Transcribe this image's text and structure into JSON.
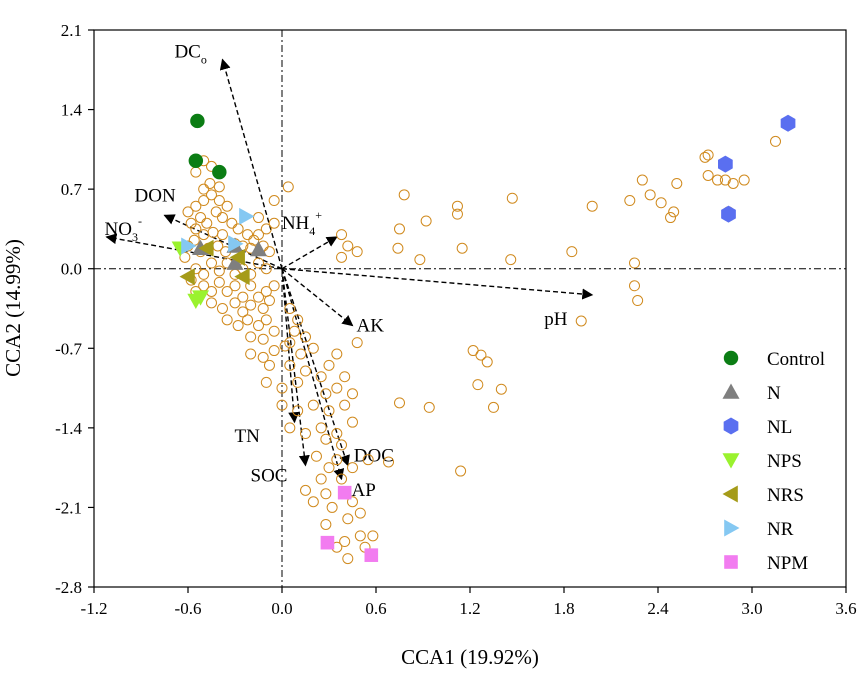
{
  "chart_data": {
    "type": "scatter",
    "title": "",
    "xlabel": "CCA1 (19.92%)",
    "ylabel": "CCA2 (14.99%)",
    "xlim": [
      -1.2,
      3.6
    ],
    "ylim": [
      -2.8,
      2.1
    ],
    "x_ticks": [
      -1.2,
      -0.6,
      0.0,
      0.6,
      1.2,
      1.8,
      2.4,
      3.0,
      3.6
    ],
    "x_tick_labels": [
      "-1.2",
      "-0.6",
      "0.0",
      "0.6",
      "1.2",
      "1.8",
      "2.4",
      "3.0",
      "3.6"
    ],
    "y_ticks": [
      2.1,
      1.4,
      0.7,
      0.0,
      -0.7,
      -1.4,
      -2.1,
      -2.8
    ],
    "y_tick_labels": [
      "2.1",
      "1.4",
      "0.7",
      "0.0",
      "-0.7",
      "-1.4",
      "-2.1",
      "-2.8"
    ],
    "reference_lines": {
      "x": 0,
      "y": 0,
      "style": "dash-dot"
    },
    "legend_position": "right",
    "species_points": [
      [
        -0.55,
        0.55
      ],
      [
        -0.5,
        0.6
      ],
      [
        -0.45,
        0.65
      ],
      [
        -0.52,
        0.45
      ],
      [
        -0.48,
        0.4
      ],
      [
        -0.42,
        0.5
      ],
      [
        -0.38,
        0.45
      ],
      [
        -0.5,
        0.7
      ],
      [
        -0.46,
        0.75
      ],
      [
        -0.4,
        0.72
      ],
      [
        -0.55,
        0.35
      ],
      [
        -0.5,
        0.3
      ],
      [
        -0.44,
        0.32
      ],
      [
        -0.38,
        0.3
      ],
      [
        -0.35,
        0.55
      ],
      [
        -0.32,
        0.4
      ],
      [
        -0.28,
        0.35
      ],
      [
        -0.22,
        0.3
      ],
      [
        -0.18,
        0.25
      ],
      [
        -0.15,
        0.3
      ],
      [
        -0.56,
        0.25
      ],
      [
        -0.52,
        0.15
      ],
      [
        -0.47,
        0.18
      ],
      [
        -0.41,
        0.2
      ],
      [
        -0.36,
        0.15
      ],
      [
        -0.3,
        0.22
      ],
      [
        -0.25,
        0.2
      ],
      [
        -0.2,
        0.18
      ],
      [
        -0.12,
        0.2
      ],
      [
        -0.08,
        0.15
      ],
      [
        -0.55,
        0.0
      ],
      [
        -0.5,
        -0.05
      ],
      [
        -0.45,
        0.05
      ],
      [
        -0.4,
        -0.02
      ],
      [
        -0.35,
        0.05
      ],
      [
        -0.3,
        -0.05
      ],
      [
        -0.25,
        0.0
      ],
      [
        -0.2,
        -0.05
      ],
      [
        -0.15,
        0.05
      ],
      [
        -0.1,
        0.0
      ],
      [
        -0.5,
        -0.15
      ],
      [
        -0.45,
        -0.2
      ],
      [
        -0.4,
        -0.12
      ],
      [
        -0.35,
        -0.2
      ],
      [
        -0.3,
        -0.15
      ],
      [
        -0.25,
        -0.25
      ],
      [
        -0.2,
        -0.15
      ],
      [
        -0.15,
        -0.25
      ],
      [
        -0.1,
        -0.2
      ],
      [
        -0.05,
        -0.15
      ],
      [
        -0.45,
        -0.3
      ],
      [
        -0.38,
        -0.35
      ],
      [
        -0.3,
        -0.3
      ],
      [
        -0.25,
        -0.38
      ],
      [
        -0.2,
        -0.32
      ],
      [
        -0.12,
        -0.35
      ],
      [
        -0.08,
        -0.28
      ],
      [
        -0.35,
        -0.45
      ],
      [
        -0.28,
        -0.5
      ],
      [
        -0.22,
        -0.45
      ],
      [
        -0.15,
        -0.5
      ],
      [
        -0.1,
        -0.45
      ],
      [
        -0.2,
        -0.6
      ],
      [
        -0.12,
        -0.62
      ],
      [
        -0.05,
        -0.55
      ],
      [
        -0.2,
        -0.75
      ],
      [
        -0.12,
        -0.78
      ],
      [
        -0.05,
        -0.72
      ],
      [
        0.02,
        -0.68
      ],
      [
        -0.08,
        -0.85
      ],
      [
        -0.55,
        0.85
      ],
      [
        -0.5,
        0.95
      ],
      [
        -0.45,
        0.9
      ],
      [
        -0.4,
        0.6
      ],
      [
        -0.6,
        0.5
      ],
      [
        -0.58,
        0.4
      ],
      [
        -0.6,
        0.2
      ],
      [
        -0.62,
        0.1
      ],
      [
        -0.58,
        -0.1
      ],
      [
        -0.55,
        -0.2
      ],
      [
        -0.05,
        0.6
      ],
      [
        0.04,
        0.72
      ],
      [
        -0.15,
        0.45
      ],
      [
        -0.1,
        0.35
      ],
      [
        -0.05,
        0.4
      ],
      [
        0.05,
        -0.35
      ],
      [
        0.1,
        -0.45
      ],
      [
        0.08,
        -0.55
      ],
      [
        0.15,
        -0.6
      ],
      [
        0.05,
        -0.65
      ],
      [
        0.12,
        -0.75
      ],
      [
        0.2,
        -0.7
      ],
      [
        0.05,
        -0.85
      ],
      [
        0.15,
        -0.9
      ],
      [
        0.25,
        -0.95
      ],
      [
        -0.1,
        -1.0
      ],
      [
        0.0,
        -1.05
      ],
      [
        0.1,
        -1.0
      ],
      [
        0.3,
        -0.85
      ],
      [
        0.28,
        -1.1
      ],
      [
        0.35,
        -1.05
      ],
      [
        0.0,
        -1.2
      ],
      [
        0.1,
        -1.25
      ],
      [
        0.2,
        -1.2
      ],
      [
        0.3,
        -1.25
      ],
      [
        0.4,
        -1.2
      ],
      [
        0.45,
        -1.1
      ],
      [
        0.05,
        -1.4
      ],
      [
        0.15,
        -1.45
      ],
      [
        0.25,
        -1.4
      ],
      [
        0.35,
        -1.45
      ],
      [
        0.45,
        -1.35
      ],
      [
        0.38,
        -1.55
      ],
      [
        0.28,
        -1.5
      ],
      [
        0.4,
        -0.95
      ],
      [
        0.22,
        -1.65
      ],
      [
        0.3,
        -1.75
      ],
      [
        0.35,
        -1.68
      ],
      [
        0.25,
        -1.85
      ],
      [
        0.38,
        -1.85
      ],
      [
        0.15,
        -1.95
      ],
      [
        0.28,
        -1.98
      ],
      [
        0.45,
        -1.75
      ],
      [
        0.55,
        -1.68
      ],
      [
        0.68,
        -1.7
      ],
      [
        0.2,
        -2.05
      ],
      [
        0.32,
        -2.1
      ],
      [
        0.45,
        -2.05
      ],
      [
        0.42,
        -2.2
      ],
      [
        0.5,
        -2.15
      ],
      [
        0.28,
        -2.25
      ],
      [
        0.4,
        -2.4
      ],
      [
        0.5,
        -2.35
      ],
      [
        0.42,
        -2.55
      ],
      [
        0.53,
        -2.45
      ],
      [
        0.35,
        -2.45
      ],
      [
        0.58,
        -2.35
      ],
      [
        0.48,
        -0.65
      ],
      [
        0.35,
        -0.75
      ],
      [
        0.38,
        0.3
      ],
      [
        0.42,
        0.2
      ],
      [
        0.48,
        0.15
      ],
      [
        0.38,
        0.1
      ],
      [
        0.75,
        0.35
      ],
      [
        0.78,
        0.65
      ],
      [
        0.74,
        0.18
      ],
      [
        0.92,
        0.42
      ],
      [
        0.88,
        0.08
      ],
      [
        1.12,
        0.55
      ],
      [
        1.12,
        0.48
      ],
      [
        1.15,
        0.18
      ],
      [
        1.47,
        0.62
      ],
      [
        1.46,
        0.08
      ],
      [
        1.98,
        0.55
      ],
      [
        1.85,
        0.15
      ],
      [
        2.22,
        0.6
      ],
      [
        2.3,
        0.78
      ],
      [
        2.35,
        0.65
      ],
      [
        2.42,
        0.58
      ],
      [
        2.52,
        0.75
      ],
      [
        2.48,
        0.45
      ],
      [
        2.5,
        0.5
      ],
      [
        2.25,
        0.05
      ],
      [
        2.25,
        -0.15
      ],
      [
        2.27,
        -0.28
      ],
      [
        2.7,
        0.98
      ],
      [
        2.72,
        0.82
      ],
      [
        2.78,
        0.78
      ],
      [
        2.83,
        0.78
      ],
      [
        2.88,
        0.75
      ],
      [
        2.95,
        0.78
      ],
      [
        2.85,
        0.5
      ],
      [
        2.72,
        1.0
      ],
      [
        3.15,
        1.12
      ],
      [
        1.22,
        -0.72
      ],
      [
        1.27,
        -0.76
      ],
      [
        1.31,
        -0.82
      ],
      [
        1.25,
        -1.02
      ],
      [
        1.4,
        -1.06
      ],
      [
        1.35,
        -1.22
      ],
      [
        1.14,
        -1.78
      ],
      [
        0.75,
        -1.18
      ],
      [
        0.94,
        -1.22
      ],
      [
        1.91,
        -0.46
      ]
    ],
    "environmental_vectors": [
      {
        "name": "DC",
        "subscript": "o",
        "superscript": "",
        "end": [
          -0.38,
          1.84
        ]
      },
      {
        "name": "DON",
        "subscript": "",
        "superscript": "",
        "end": [
          -0.75,
          0.47
        ]
      },
      {
        "name": "NO",
        "subscript": "3",
        "superscript": "-",
        "end": [
          -1.12,
          0.28
        ]
      },
      {
        "name": "NH",
        "subscript": "4",
        "superscript": "+",
        "end": [
          0.35,
          0.28
        ]
      },
      {
        "name": "AK",
        "subscript": "",
        "superscript": "",
        "end": [
          0.45,
          -0.5
        ]
      },
      {
        "name": "pH",
        "subscript": "",
        "superscript": "",
        "end": [
          1.98,
          -0.23
        ]
      },
      {
        "name": "TN",
        "subscript": "",
        "superscript": "",
        "end": [
          0.08,
          -1.35
        ]
      },
      {
        "name": "SOC",
        "subscript": "",
        "superscript": "",
        "end": [
          0.15,
          -1.73
        ]
      },
      {
        "name": "DOC",
        "subscript": "",
        "superscript": "",
        "end": [
          0.42,
          -1.73
        ]
      },
      {
        "name": "AP",
        "subscript": "",
        "superscript": "",
        "end": [
          0.38,
          -1.85
        ]
      }
    ],
    "series": [
      {
        "name": "Control",
        "marker": "circle",
        "color": "#0b7d14",
        "x": [
          -0.54,
          -0.55,
          -0.4
        ],
        "y": [
          1.3,
          0.95,
          0.85
        ]
      },
      {
        "name": "N",
        "marker": "triangle-up",
        "color": "#7f7f7f",
        "x": [
          -0.52,
          -0.3,
          -0.15,
          -0.3
        ],
        "y": [
          0.18,
          0.2,
          0.17,
          0.05
        ]
      },
      {
        "name": "NL",
        "marker": "hexagon",
        "color": "#5a6ff0",
        "x": [
          2.83,
          3.23,
          2.85
        ],
        "y": [
          0.92,
          1.28,
          0.48
        ]
      },
      {
        "name": "NPS",
        "marker": "triangle-down",
        "color": "#9af22e",
        "x": [
          -0.65,
          -0.52,
          -0.55
        ],
        "y": [
          0.18,
          -0.25,
          -0.28
        ]
      },
      {
        "name": "NRS",
        "marker": "triangle-left",
        "color": "#a59b19",
        "x": [
          -0.48,
          -0.6,
          -0.25,
          -0.28
        ],
        "y": [
          0.18,
          -0.07,
          -0.07,
          0.1
        ]
      },
      {
        "name": "NR",
        "marker": "triangle-right",
        "color": "#85c8f2",
        "x": [
          -0.23,
          -0.6,
          -0.3
        ],
        "y": [
          0.46,
          0.2,
          0.22
        ]
      },
      {
        "name": "NPM",
        "marker": "square",
        "color": "#f27cf0",
        "x": [
          0.4,
          0.29,
          0.57
        ],
        "y": [
          -1.97,
          -2.41,
          -2.52
        ]
      }
    ]
  }
}
